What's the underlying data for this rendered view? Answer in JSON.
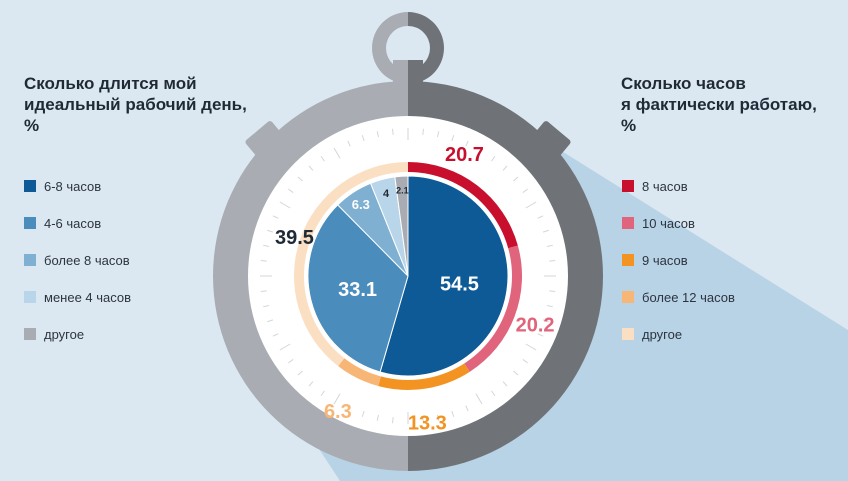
{
  "colors": {
    "background": "#dce8f1",
    "dark_blue": "#0e5a96",
    "mid_blue": "#4a8cbc",
    "light_blue": "#7fb0d2",
    "pale_blue": "#b8d5e9",
    "gray": "#a9adb3",
    "red": "#c8102e",
    "pink": "#e0647c",
    "orange": "#f29322",
    "light_orange": "#f7b676",
    "beige": "#fbdfc2"
  },
  "left_panel": {
    "title_lines": [
      "Сколько длится мой",
      "идеальный рабочий день,",
      "%"
    ],
    "legend": [
      {
        "label": "6-8 часов",
        "color": "#0e5a96"
      },
      {
        "label": "4-6 часов",
        "color": "#4a8cbc"
      },
      {
        "label": "более 8 часов",
        "color": "#7fb0d2"
      },
      {
        "label": "менее 4 часов",
        "color": "#b8d5e9"
      },
      {
        "label": "другое",
        "color": "#a9adb3"
      }
    ]
  },
  "right_panel": {
    "title_lines": [
      "Сколько часов",
      "я фактически работаю,",
      "%"
    ],
    "legend": [
      {
        "label": "8 часов",
        "color": "#c8102e"
      },
      {
        "label": "10 часов",
        "color": "#e0647c"
      },
      {
        "label": "9 часов",
        "color": "#f29322"
      },
      {
        "label": "более 12 часов",
        "color": "#f7b676"
      },
      {
        "label": "другое",
        "color": "#fbdfc2"
      }
    ]
  },
  "chart_data": [
    {
      "type": "pie",
      "title": "Сколько длится мой идеальный рабочий день, %",
      "categories": [
        "6-8 часов",
        "4-6 часов",
        "более 8 часов",
        "менее 4 часов",
        "другое"
      ],
      "values": [
        54.5,
        33.1,
        6.3,
        4,
        2.1
      ],
      "labels": [
        "54.5",
        "33.1",
        "6.3",
        "4",
        "2.1"
      ],
      "colors": [
        "#0e5a96",
        "#4a8cbc",
        "#7fb0d2",
        "#b8d5e9",
        "#a9adb3"
      ],
      "label_colors": [
        "#ffffff",
        "#ffffff",
        "#ffffff",
        "#1f2a36",
        "#1f2a36"
      ]
    },
    {
      "type": "pie",
      "title": "Сколько часов я фактически работаю, %",
      "categories": [
        "8 часов",
        "10 часов",
        "9 часов",
        "более 12 часов",
        "другое"
      ],
      "values": [
        20.7,
        20.2,
        13.3,
        6.3,
        39.5
      ],
      "labels": [
        "20.7",
        "20.2",
        "13.3",
        "6.3",
        "39.5"
      ],
      "colors": [
        "#c8102e",
        "#e0647c",
        "#f29322",
        "#f7b676",
        "#fbdfc2"
      ],
      "label_colors": [
        "#c8102e",
        "#e0647c",
        "#f29322",
        "#f7b676",
        "#1f2a36"
      ]
    }
  ]
}
